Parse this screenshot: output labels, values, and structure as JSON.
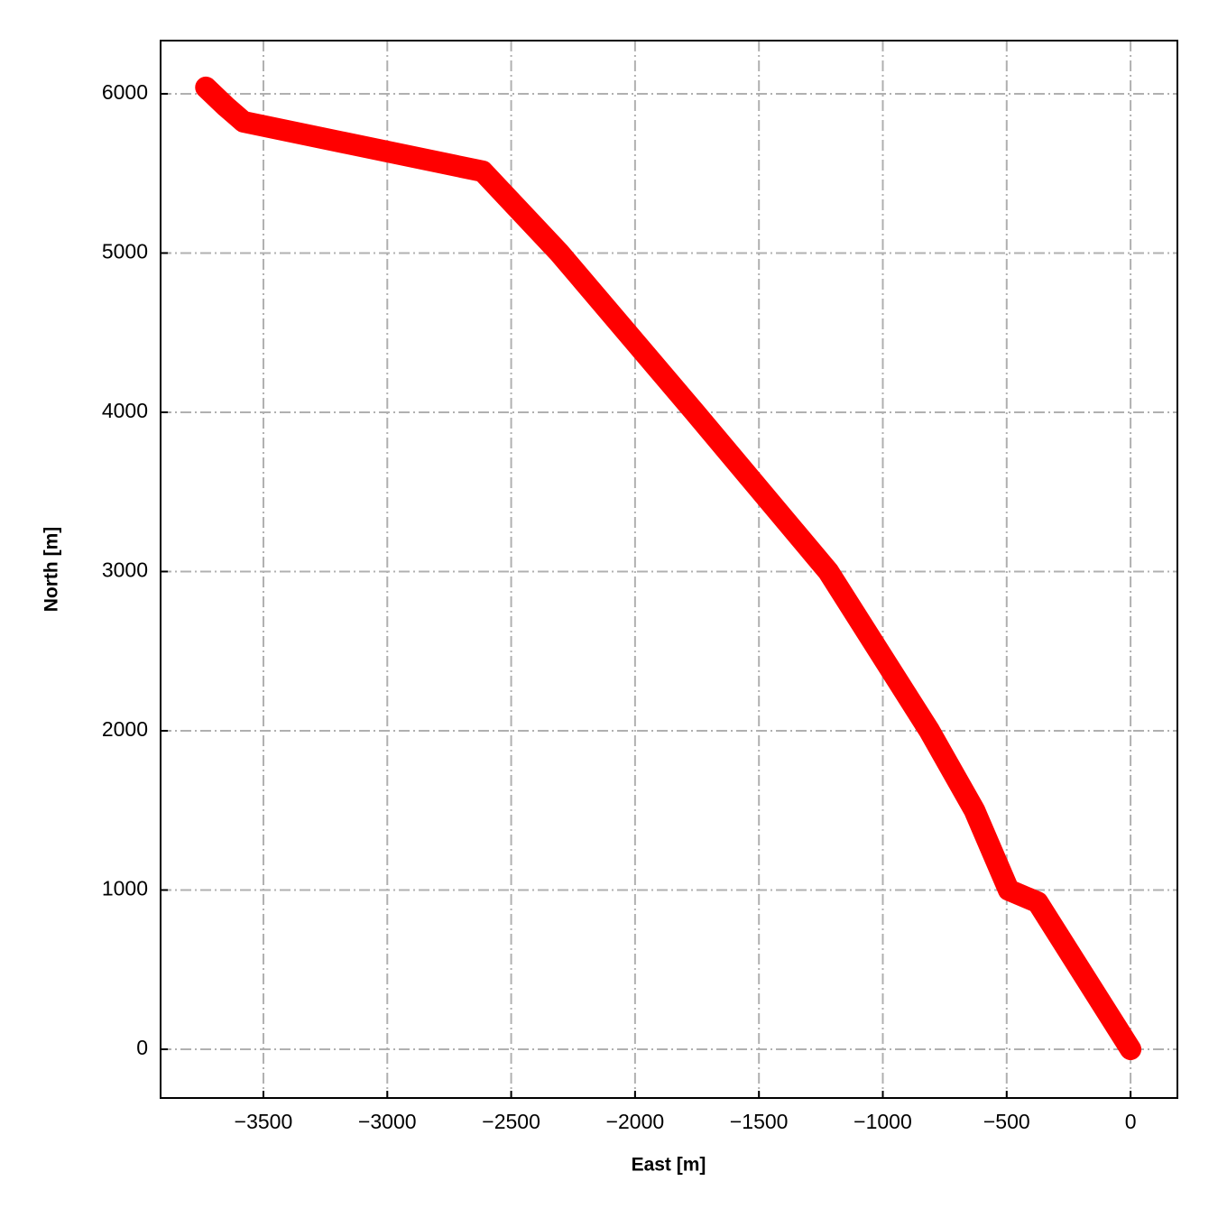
{
  "chart_data": {
    "type": "line",
    "xlabel": "East [m]",
    "ylabel": "North [m]",
    "x": [
      0,
      -375,
      -492,
      -630,
      -812,
      -1220,
      -1759,
      -2305,
      -2615,
      -3580,
      -3652,
      -3732
    ],
    "series": [
      {
        "color": "#ff0000",
        "values": [
          0,
          923,
          1000,
          1500,
          2000,
          3000,
          4000,
          5000,
          5513,
          5824,
          5921,
          6040
        ]
      }
    ],
    "xlim": [
      -3915,
      189
    ],
    "ylim": [
      -306,
      6334
    ],
    "xticks": [
      {
        "value": -3500,
        "label": "−3500"
      },
      {
        "value": -3000,
        "label": "−3000"
      },
      {
        "value": -2500,
        "label": "−2500"
      },
      {
        "value": -2000,
        "label": "−2000"
      },
      {
        "value": -1500,
        "label": "−1500"
      },
      {
        "value": -1000,
        "label": "−1000"
      },
      {
        "value": -500,
        "label": "−500"
      },
      0
    ],
    "yticks": [
      0,
      1000,
      2000,
      3000,
      4000,
      5000,
      6000
    ],
    "grid": true
  }
}
